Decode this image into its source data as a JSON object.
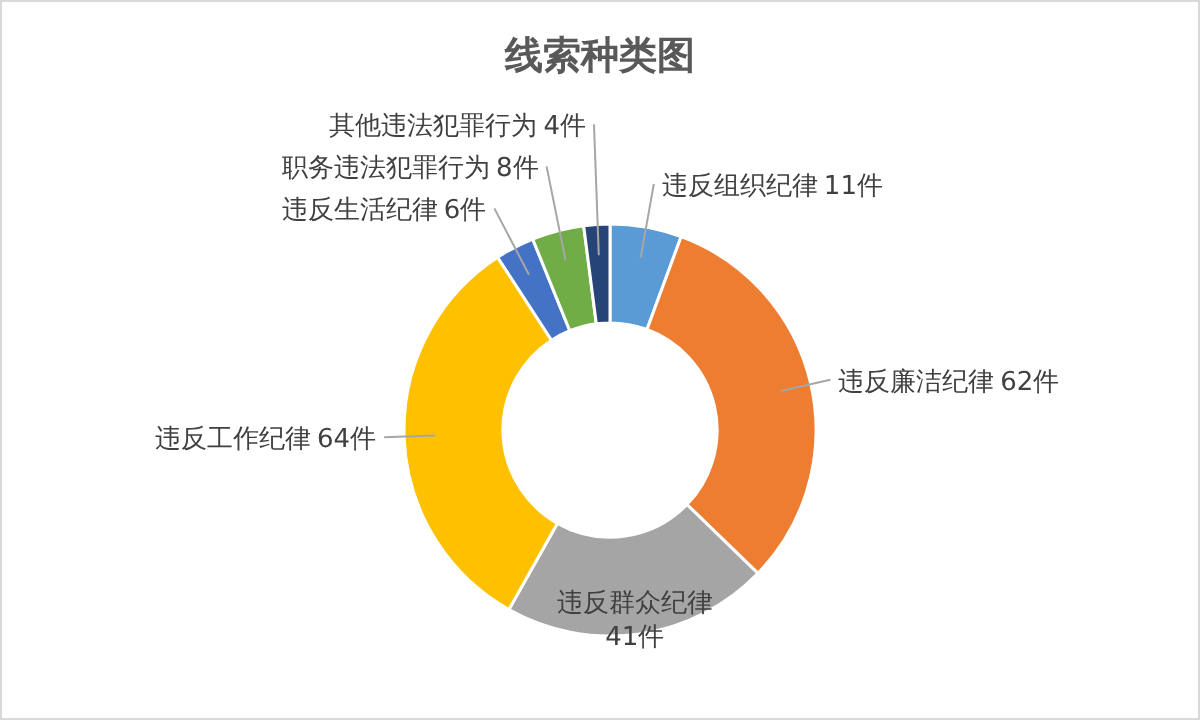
{
  "chart_data": {
    "type": "donut",
    "title": "线索种类图",
    "categories": [
      "违反组织纪律",
      "违反廉洁纪律",
      "违反群众纪律",
      "违反工作纪律",
      "违反生活纪律",
      "职务违法犯罪行为",
      "其他违法犯罪行为"
    ],
    "values": [
      11,
      62,
      41,
      64,
      6,
      8,
      4
    ],
    "colors": [
      "#5b9bd5",
      "#ed7d31",
      "#a5a5a5",
      "#ffc000",
      "#4472c4",
      "#70ad47",
      "#264478"
    ],
    "value_labels": [
      "11件",
      "62件",
      "41件",
      "64件",
      "6件",
      "8件",
      "4件"
    ]
  }
}
